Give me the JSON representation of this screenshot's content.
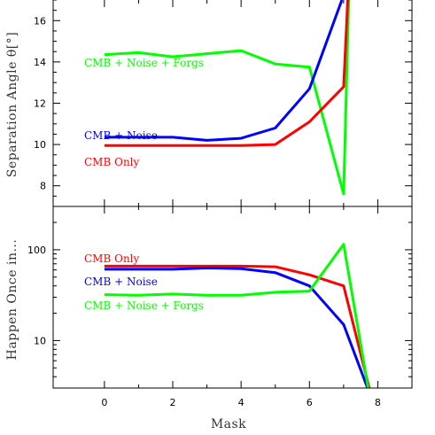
{
  "chart_data": [
    {
      "type": "line",
      "ylabel": "Separation Angle θ[°]",
      "xlim": [
        -1.5,
        9.0
      ],
      "ylim": [
        7.0,
        17.0
      ],
      "yscale": "linear",
      "yticks": [
        8,
        10,
        12,
        14,
        16
      ],
      "ytick_labels": [
        "8",
        "10",
        "12",
        "14",
        "16"
      ],
      "grid": false,
      "series": [
        {
          "name": "CMB + Noise + Forgs",
          "color": "#00ff00",
          "x": [
            0,
            1,
            2,
            3,
            4,
            5,
            6,
            7,
            7.15
          ],
          "y": [
            14.35,
            14.45,
            14.25,
            14.4,
            14.55,
            13.9,
            13.75,
            7.6,
            17.0
          ]
        },
        {
          "name": "CMB + Noise",
          "color": "#0000ff",
          "x": [
            0,
            1,
            2,
            3,
            4,
            5,
            6,
            6.95
          ],
          "y": [
            10.35,
            10.35,
            10.35,
            10.2,
            10.3,
            10.8,
            12.7,
            17.0
          ]
        },
        {
          "name": "CMB Only",
          "color": "#ff0000",
          "x": [
            0,
            1,
            2,
            3,
            4,
            5,
            6,
            7,
            7.12
          ],
          "y": [
            9.95,
            9.95,
            9.95,
            9.95,
            9.95,
            10.0,
            11.1,
            12.8,
            17.0
          ]
        }
      ]
    },
    {
      "type": "line",
      "xlabel": "Mask",
      "ylabel": "Happen Once in...",
      "xlim": [
        -1.5,
        9.0
      ],
      "ylim": [
        3,
        300
      ],
      "yscale": "log",
      "yticks": [
        10,
        100
      ],
      "ytick_labels": [
        "10",
        "100"
      ],
      "xticks": [
        0,
        2,
        4,
        6,
        8
      ],
      "xtick_labels": [
        "0",
        "2",
        "4",
        "6",
        "8"
      ],
      "grid": false,
      "series": [
        {
          "name": "CMB Only",
          "color": "#ff0000",
          "x": [
            0,
            1,
            2,
            3,
            4,
            5,
            6,
            7,
            7.75
          ],
          "y": [
            66,
            66,
            66,
            66,
            66,
            65,
            53,
            40,
            3
          ]
        },
        {
          "name": "CMB + Noise",
          "color": "#0000ff",
          "x": [
            0,
            1,
            2,
            3,
            4,
            5,
            6,
            7,
            7.7
          ],
          "y": [
            61,
            61,
            61,
            63,
            62,
            56,
            40,
            15,
            3
          ]
        },
        {
          "name": "CMB + Noise + Forgs",
          "color": "#00ff00",
          "x": [
            0,
            1,
            2,
            3,
            4,
            5,
            6,
            7,
            7.72
          ],
          "y": [
            32,
            31.5,
            32.5,
            31.5,
            31.5,
            34,
            35,
            115,
            3
          ]
        }
      ]
    }
  ]
}
